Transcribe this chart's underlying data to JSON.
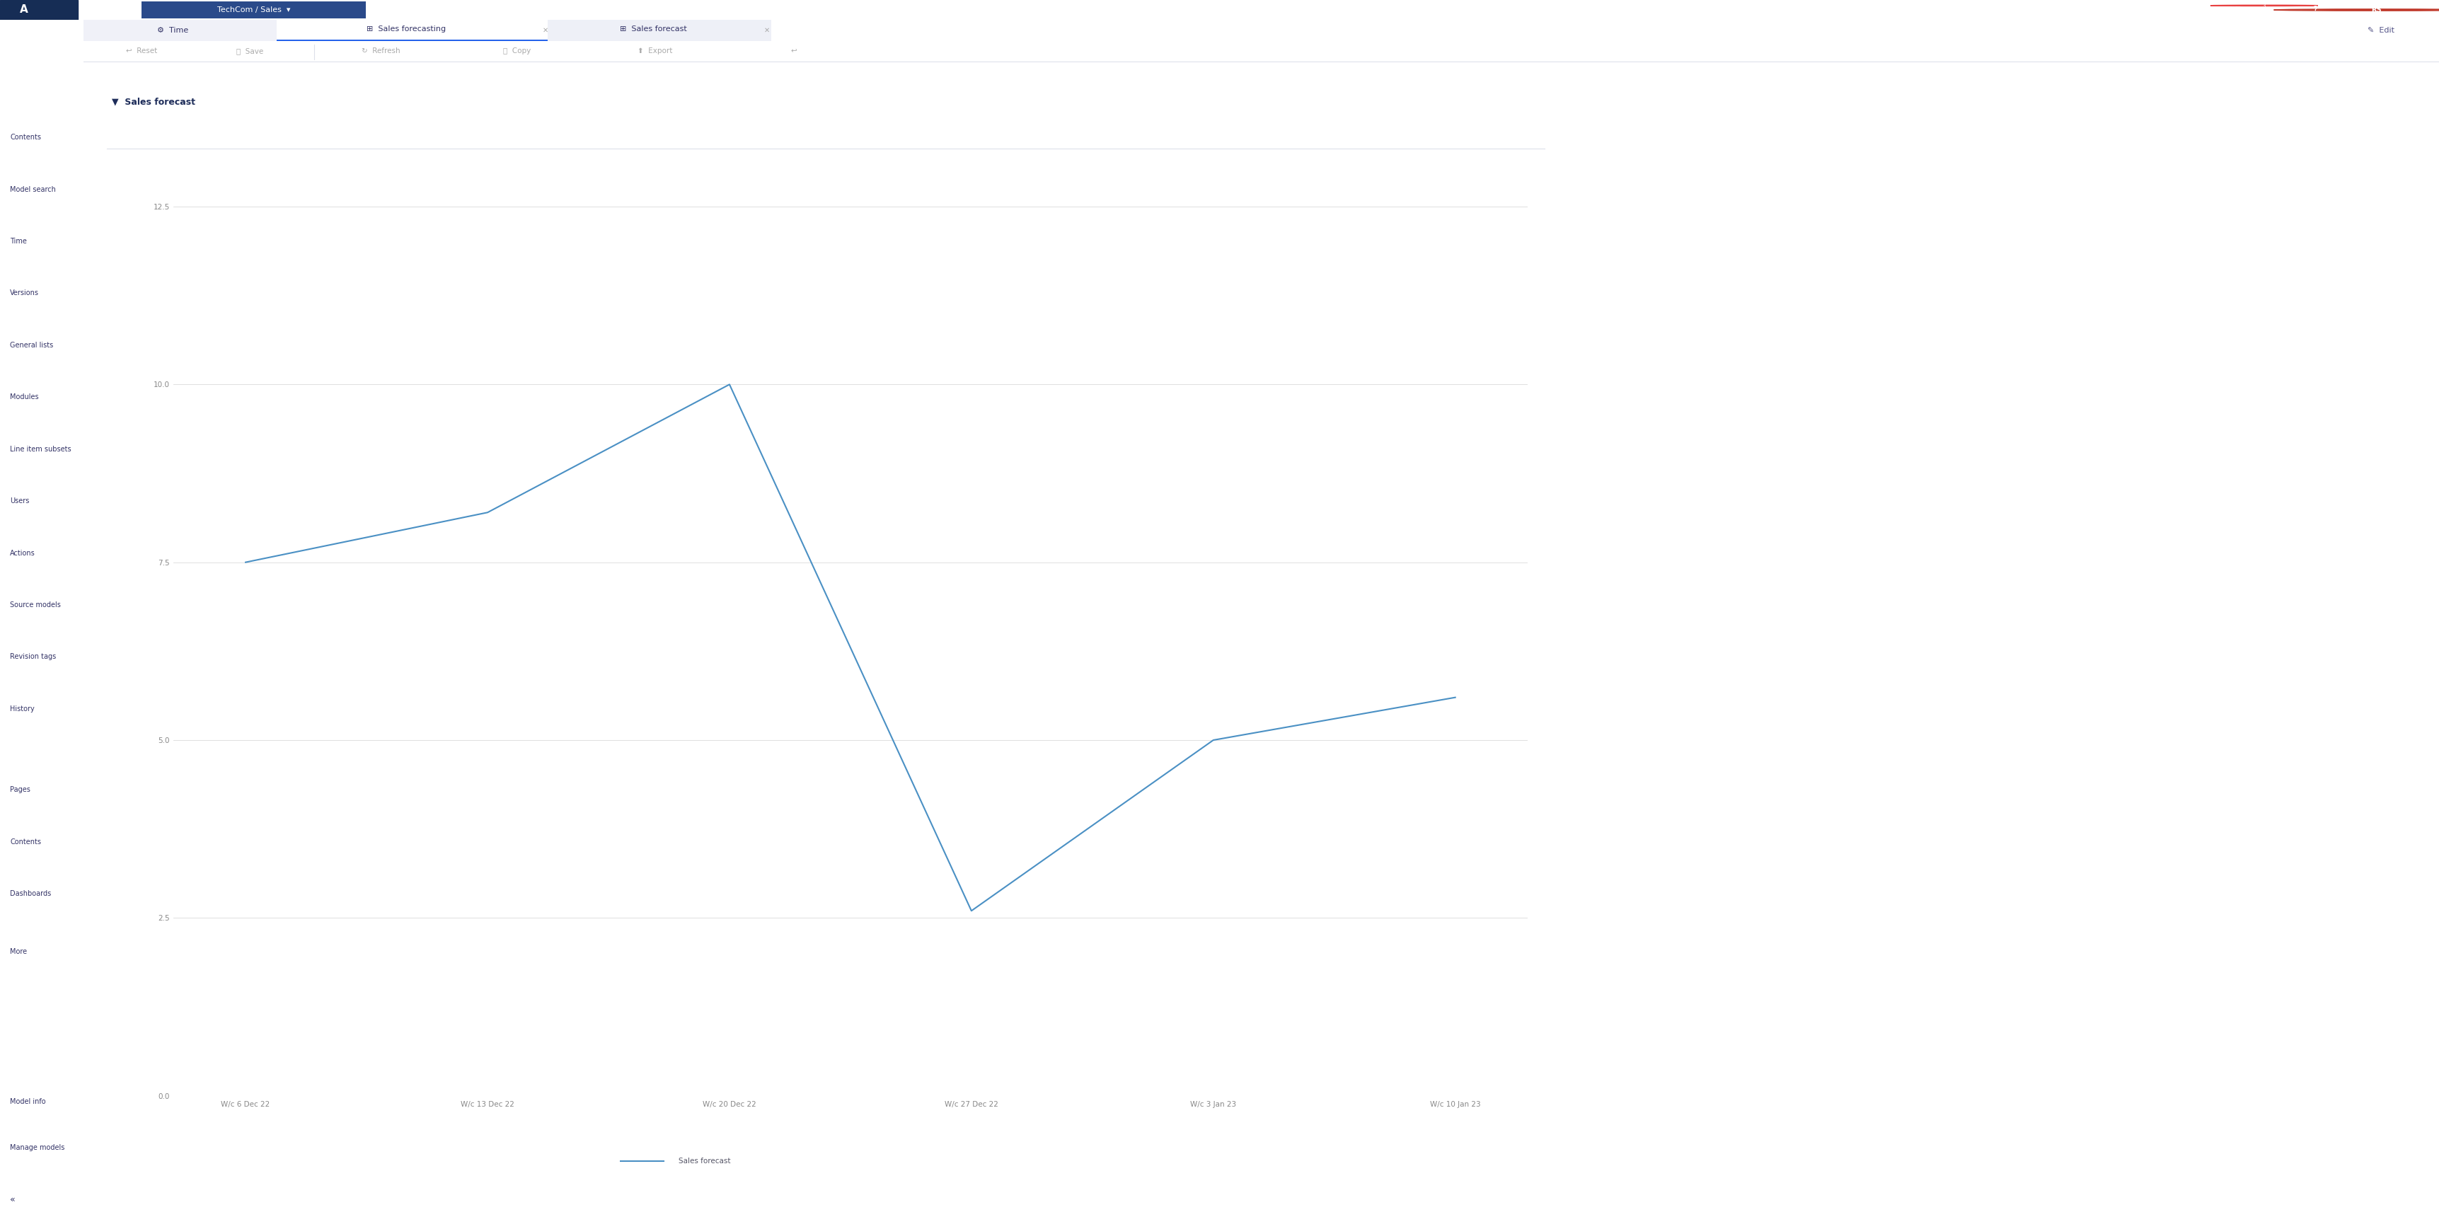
{
  "title": "Sales forecast",
  "x_labels": [
    "W/c 6 Dec 22",
    "W/c 13 Dec 22",
    "W/c 20 Dec 22",
    "W/c 27 Dec 22",
    "W/c 3 Jan 23",
    "W/c 10 Jan 23"
  ],
  "y_values": [
    7.5,
    8.2,
    10.0,
    2.6,
    5.0,
    5.6
  ],
  "line_color": "#4a90c4",
  "ylim": [
    0,
    12.5
  ],
  "yticks": [
    0,
    2.5,
    5,
    7.5,
    10,
    12.5
  ],
  "legend_label": "Sales forecast",
  "bg_color": "#ffffff",
  "grid_color": "#e0e0e0",
  "topbar_bg": "#1e3a6e",
  "sidebar_bg": "#f0f1f8",
  "tab_active_bg": "#ffffff",
  "tab_inactive_bg": "#eef0f7",
  "toolbar_bg": "#ffffff",
  "separator_color": "#dde0ea",
  "title_color": "#1e2d5a",
  "sidebar_text_color": "#333366",
  "axis_label_color": "#888888"
}
